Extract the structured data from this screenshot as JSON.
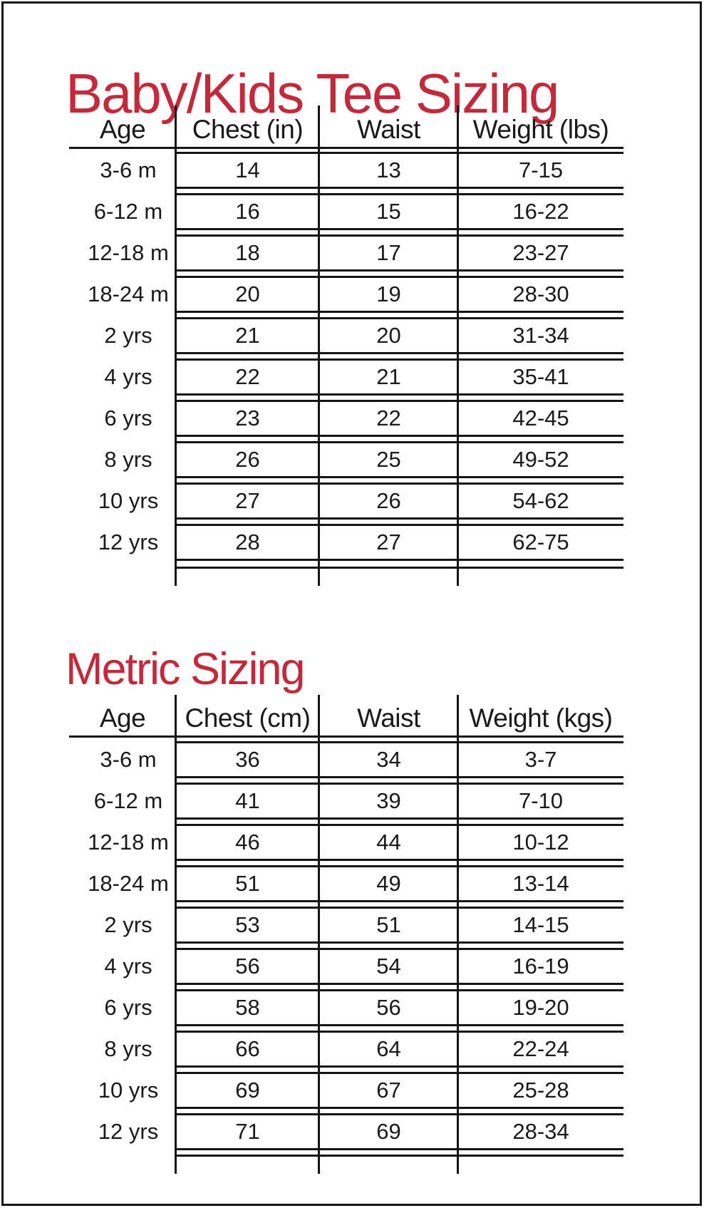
{
  "page": {
    "background": "#ffffff",
    "border_color": "#151515",
    "title_color": "#c2293a",
    "text_color": "#1a1a1a"
  },
  "sections": [
    {
      "title": "Baby/Kids Tee Sizing",
      "columns": [
        "Age",
        "Chest (in)",
        "Waist",
        "Weight (lbs)"
      ],
      "rows": [
        {
          "age": "3-6 m",
          "chest": "14",
          "waist": "13",
          "weight": "7-15"
        },
        {
          "age": "6-12 m",
          "chest": "16",
          "waist": "15",
          "weight": "16-22"
        },
        {
          "age": "12-18 m",
          "chest": "18",
          "waist": "17",
          "weight": "23-27"
        },
        {
          "age": "18-24 m",
          "chest": "20",
          "waist": "19",
          "weight": "28-30"
        },
        {
          "age": "2 yrs",
          "chest": "21",
          "waist": "20",
          "weight": "31-34"
        },
        {
          "age": "4 yrs",
          "chest": "22",
          "waist": "21",
          "weight": "35-41"
        },
        {
          "age": "6 yrs",
          "chest": "23",
          "waist": "22",
          "weight": "42-45"
        },
        {
          "age": "8 yrs",
          "chest": "26",
          "waist": "25",
          "weight": "49-52"
        },
        {
          "age": "10 yrs",
          "chest": "27",
          "waist": "26",
          "weight": "54-62"
        },
        {
          "age": "12 yrs",
          "chest": "28",
          "waist": "27",
          "weight": "62-75"
        }
      ]
    },
    {
      "title": "Metric Sizing",
      "columns": [
        "Age",
        "Chest (cm)",
        "Waist",
        "Weight (kgs)"
      ],
      "rows": [
        {
          "age": "3-6 m",
          "chest": "36",
          "waist": "34",
          "weight": "3-7"
        },
        {
          "age": "6-12 m",
          "chest": "41",
          "waist": "39",
          "weight": "7-10"
        },
        {
          "age": "12-18 m",
          "chest": "46",
          "waist": "44",
          "weight": "10-12"
        },
        {
          "age": "18-24 m",
          "chest": "51",
          "waist": "49",
          "weight": "13-14"
        },
        {
          "age": "2 yrs",
          "chest": "53",
          "waist": "51",
          "weight": "14-15"
        },
        {
          "age": "4 yrs",
          "chest": "56",
          "waist": "54",
          "weight": "16-19"
        },
        {
          "age": "6 yrs",
          "chest": "58",
          "waist": "56",
          "weight": "19-20"
        },
        {
          "age": "8 yrs",
          "chest": "66",
          "waist": "64",
          "weight": "22-24"
        },
        {
          "age": "10 yrs",
          "chest": "69",
          "waist": "67",
          "weight": "25-28"
        },
        {
          "age": "12 yrs",
          "chest": "71",
          "waist": "69",
          "weight": "28-34"
        }
      ]
    }
  ]
}
